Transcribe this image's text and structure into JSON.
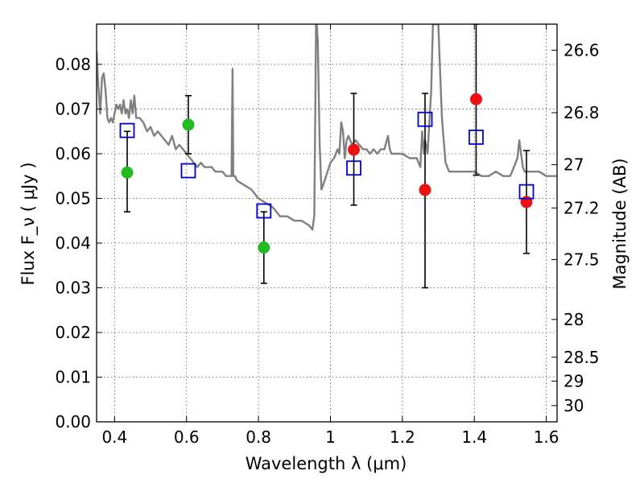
{
  "chart_data": {
    "type": "scatter",
    "xlabel": "Wavelength  λ (μm)",
    "ylabel": "Flux  F_ν  ( μJy )",
    "y2label": "Magnitude (AB)",
    "xlim": [
      0.35,
      1.63
    ],
    "ylim": [
      0.0,
      0.089
    ],
    "x_ticks": [
      0.4,
      0.6,
      0.8,
      1.0,
      1.2,
      1.4,
      1.6
    ],
    "x_tick_labels": [
      "0.4",
      "0.6",
      "0.8",
      "1",
      "1.2",
      "1.4",
      "1.6"
    ],
    "y_ticks": [
      0.0,
      0.01,
      0.02,
      0.03,
      0.04,
      0.05,
      0.06,
      0.07,
      0.08
    ],
    "y_tick_labels": [
      "0.00",
      "0.01",
      "0.02",
      "0.03",
      "0.04",
      "0.05",
      "0.06",
      "0.07",
      "0.08"
    ],
    "y2_ticks": [
      {
        "mag": 26.6,
        "label": "26.6"
      },
      {
        "mag": 26.8,
        "label": "26.8"
      },
      {
        "mag": 27.0,
        "label": "27"
      },
      {
        "mag": 27.2,
        "label": "27.2"
      },
      {
        "mag": 27.5,
        "label": "27.5"
      },
      {
        "mag": 28.0,
        "label": "28"
      },
      {
        "mag": 28.5,
        "label": "28.5"
      },
      {
        "mag": 29.0,
        "label": "29"
      },
      {
        "mag": 30.0,
        "label": "30"
      }
    ],
    "grid": true,
    "colors": {
      "model": "#808080",
      "model_points": "#0000cc",
      "green_points": "#22bb22",
      "red_points": "#ee1111",
      "error_bars": "#000000"
    },
    "model_spectrum": {
      "x": [
        0.35,
        0.355,
        0.36,
        0.365,
        0.37,
        0.375,
        0.38,
        0.385,
        0.39,
        0.395,
        0.4,
        0.405,
        0.41,
        0.415,
        0.42,
        0.425,
        0.43,
        0.435,
        0.44,
        0.445,
        0.45,
        0.455,
        0.46,
        0.47,
        0.48,
        0.49,
        0.5,
        0.51,
        0.52,
        0.53,
        0.54,
        0.55,
        0.56,
        0.57,
        0.58,
        0.59,
        0.6,
        0.61,
        0.62,
        0.63,
        0.64,
        0.65,
        0.66,
        0.67,
        0.68,
        0.69,
        0.7,
        0.71,
        0.72,
        0.725,
        0.728,
        0.73,
        0.735,
        0.74,
        0.76,
        0.78,
        0.8,
        0.82,
        0.84,
        0.86,
        0.88,
        0.9,
        0.92,
        0.94,
        0.95,
        0.955,
        0.958,
        0.96,
        0.962,
        0.965,
        0.97,
        0.975,
        0.98,
        1.0,
        1.01,
        1.02,
        1.025,
        1.03,
        1.035,
        1.04,
        1.045,
        1.05,
        1.06,
        1.07,
        1.08,
        1.09,
        1.1,
        1.11,
        1.12,
        1.13,
        1.14,
        1.15,
        1.16,
        1.165,
        1.17,
        1.18,
        1.2,
        1.22,
        1.24,
        1.25,
        1.255,
        1.26,
        1.263,
        1.266,
        1.27,
        1.28,
        1.285,
        1.29,
        1.295,
        1.3,
        1.305,
        1.31,
        1.315,
        1.32,
        1.33,
        1.34,
        1.36,
        1.38,
        1.4,
        1.42,
        1.44,
        1.46,
        1.48,
        1.5,
        1.51,
        1.52,
        1.525,
        1.53,
        1.535,
        1.54,
        1.56,
        1.58,
        1.6,
        1.63
      ],
      "y": [
        0.083,
        0.075,
        0.069,
        0.077,
        0.078,
        0.074,
        0.068,
        0.067,
        0.068,
        0.067,
        0.069,
        0.071,
        0.07,
        0.071,
        0.069,
        0.072,
        0.069,
        0.07,
        0.068,
        0.072,
        0.069,
        0.073,
        0.068,
        0.068,
        0.067,
        0.065,
        0.066,
        0.064,
        0.065,
        0.064,
        0.063,
        0.062,
        0.064,
        0.061,
        0.062,
        0.061,
        0.06,
        0.059,
        0.058,
        0.057,
        0.058,
        0.057,
        0.057,
        0.057,
        0.056,
        0.056,
        0.056,
        0.055,
        0.055,
        0.055,
        0.079,
        0.055,
        0.055,
        0.054,
        0.053,
        0.052,
        0.05,
        0.049,
        0.048,
        0.046,
        0.046,
        0.045,
        0.045,
        0.044,
        0.043,
        0.046,
        0.07,
        0.089,
        0.089,
        0.085,
        0.062,
        0.052,
        0.053,
        0.058,
        0.059,
        0.061,
        0.06,
        0.067,
        0.065,
        0.059,
        0.063,
        0.064,
        0.062,
        0.063,
        0.062,
        0.061,
        0.061,
        0.06,
        0.061,
        0.06,
        0.061,
        0.061,
        0.064,
        0.061,
        0.06,
        0.06,
        0.06,
        0.059,
        0.059,
        0.057,
        0.065,
        0.06,
        0.063,
        0.062,
        0.06,
        0.074,
        0.089,
        0.089,
        0.089,
        0.089,
        0.078,
        0.068,
        0.063,
        0.058,
        0.056,
        0.056,
        0.056,
        0.056,
        0.056,
        0.055,
        0.055,
        0.056,
        0.055,
        0.055,
        0.057,
        0.059,
        0.063,
        0.06,
        0.057,
        0.056,
        0.056,
        0.056,
        0.055,
        0.055
      ]
    },
    "model_points": {
      "x": [
        0.435,
        0.605,
        0.815,
        1.065,
        1.263,
        1.405,
        1.545
      ],
      "y": [
        0.0652,
        0.0562,
        0.0472,
        0.0568,
        0.0677,
        0.0637,
        0.0515
      ]
    },
    "green_points": {
      "x": [
        0.435,
        0.605,
        0.815
      ],
      "y": [
        0.0558,
        0.0665,
        0.039
      ],
      "yerr_low": [
        0.047,
        0.06,
        0.031
      ],
      "yerr_high": [
        0.065,
        0.073,
        0.047
      ]
    },
    "red_points": {
      "x": [
        1.065,
        1.263,
        1.405,
        1.545
      ],
      "y": [
        0.0609,
        0.0519,
        0.0722,
        0.0492
      ],
      "yerr_low": [
        0.0485,
        0.03,
        0.0552,
        0.0377
      ],
      "yerr_high": [
        0.0735,
        0.0735,
        0.089,
        0.0607
      ]
    }
  }
}
